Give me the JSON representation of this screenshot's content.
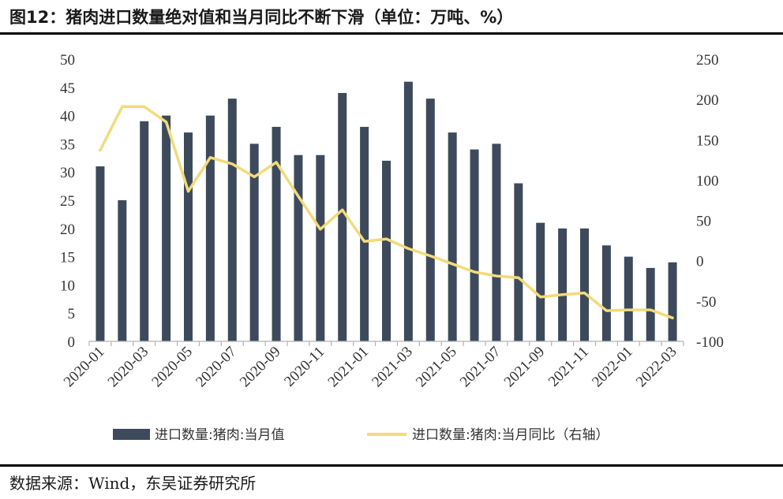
{
  "figure": {
    "title": "图12：猪肉进口数量绝对值和当月同比不断下滑（单位：万吨、%）",
    "source": "数据来源：Wind，东吴证券研究所"
  },
  "colors": {
    "bar": "#3d4a5c",
    "line": "#f2db7a"
  },
  "chart_data": {
    "type": "bar",
    "x": [
      "2020-01",
      "2020-02",
      "2020-03",
      "2020-04",
      "2020-05",
      "2020-06",
      "2020-07",
      "2020-08",
      "2020-09",
      "2020-10",
      "2020-11",
      "2020-12",
      "2021-01",
      "2021-02",
      "2021-03",
      "2021-04",
      "2021-05",
      "2021-06",
      "2021-07",
      "2021-08",
      "2021-09",
      "2021-10",
      "2021-11",
      "2021-12",
      "2022-01",
      "2022-02",
      "2022-03"
    ],
    "x_tick_labels": [
      "2020-01",
      "2020-03",
      "2020-05",
      "2020-07",
      "2020-09",
      "2020-11",
      "2021-01",
      "2021-03",
      "2021-05",
      "2021-07",
      "2021-09",
      "2021-11",
      "2022-01",
      "2022-03"
    ],
    "y_left": {
      "ylim": [
        0,
        50
      ],
      "ticks": [
        0,
        5,
        10,
        15,
        20,
        25,
        30,
        35,
        40,
        45,
        50
      ]
    },
    "y_right": {
      "ylim": [
        -100,
        250
      ],
      "ticks": [
        -100,
        -50,
        0,
        50,
        100,
        150,
        200,
        250
      ]
    },
    "series": [
      {
        "name": "进口数量:猪肉:当月值",
        "type": "bar",
        "axis": "left",
        "values": [
          31,
          25,
          39,
          40,
          37,
          40,
          43,
          35,
          38,
          33,
          33,
          44,
          38,
          32,
          46,
          43,
          37,
          34,
          35,
          28,
          21,
          20,
          20,
          17,
          15,
          13,
          14
        ]
      },
      {
        "name": "进口数量:猪肉:当月同比（右轴）",
        "type": "line",
        "axis": "right",
        "values": [
          137,
          191,
          191,
          172,
          86,
          128,
          120,
          104,
          122,
          80,
          39,
          63,
          24,
          27,
          15,
          6,
          -4,
          -14,
          -19,
          -21,
          -45,
          -42,
          -40,
          -62,
          -61,
          -61,
          -71
        ]
      }
    ],
    "legend_position": "bottom",
    "grid": false
  }
}
